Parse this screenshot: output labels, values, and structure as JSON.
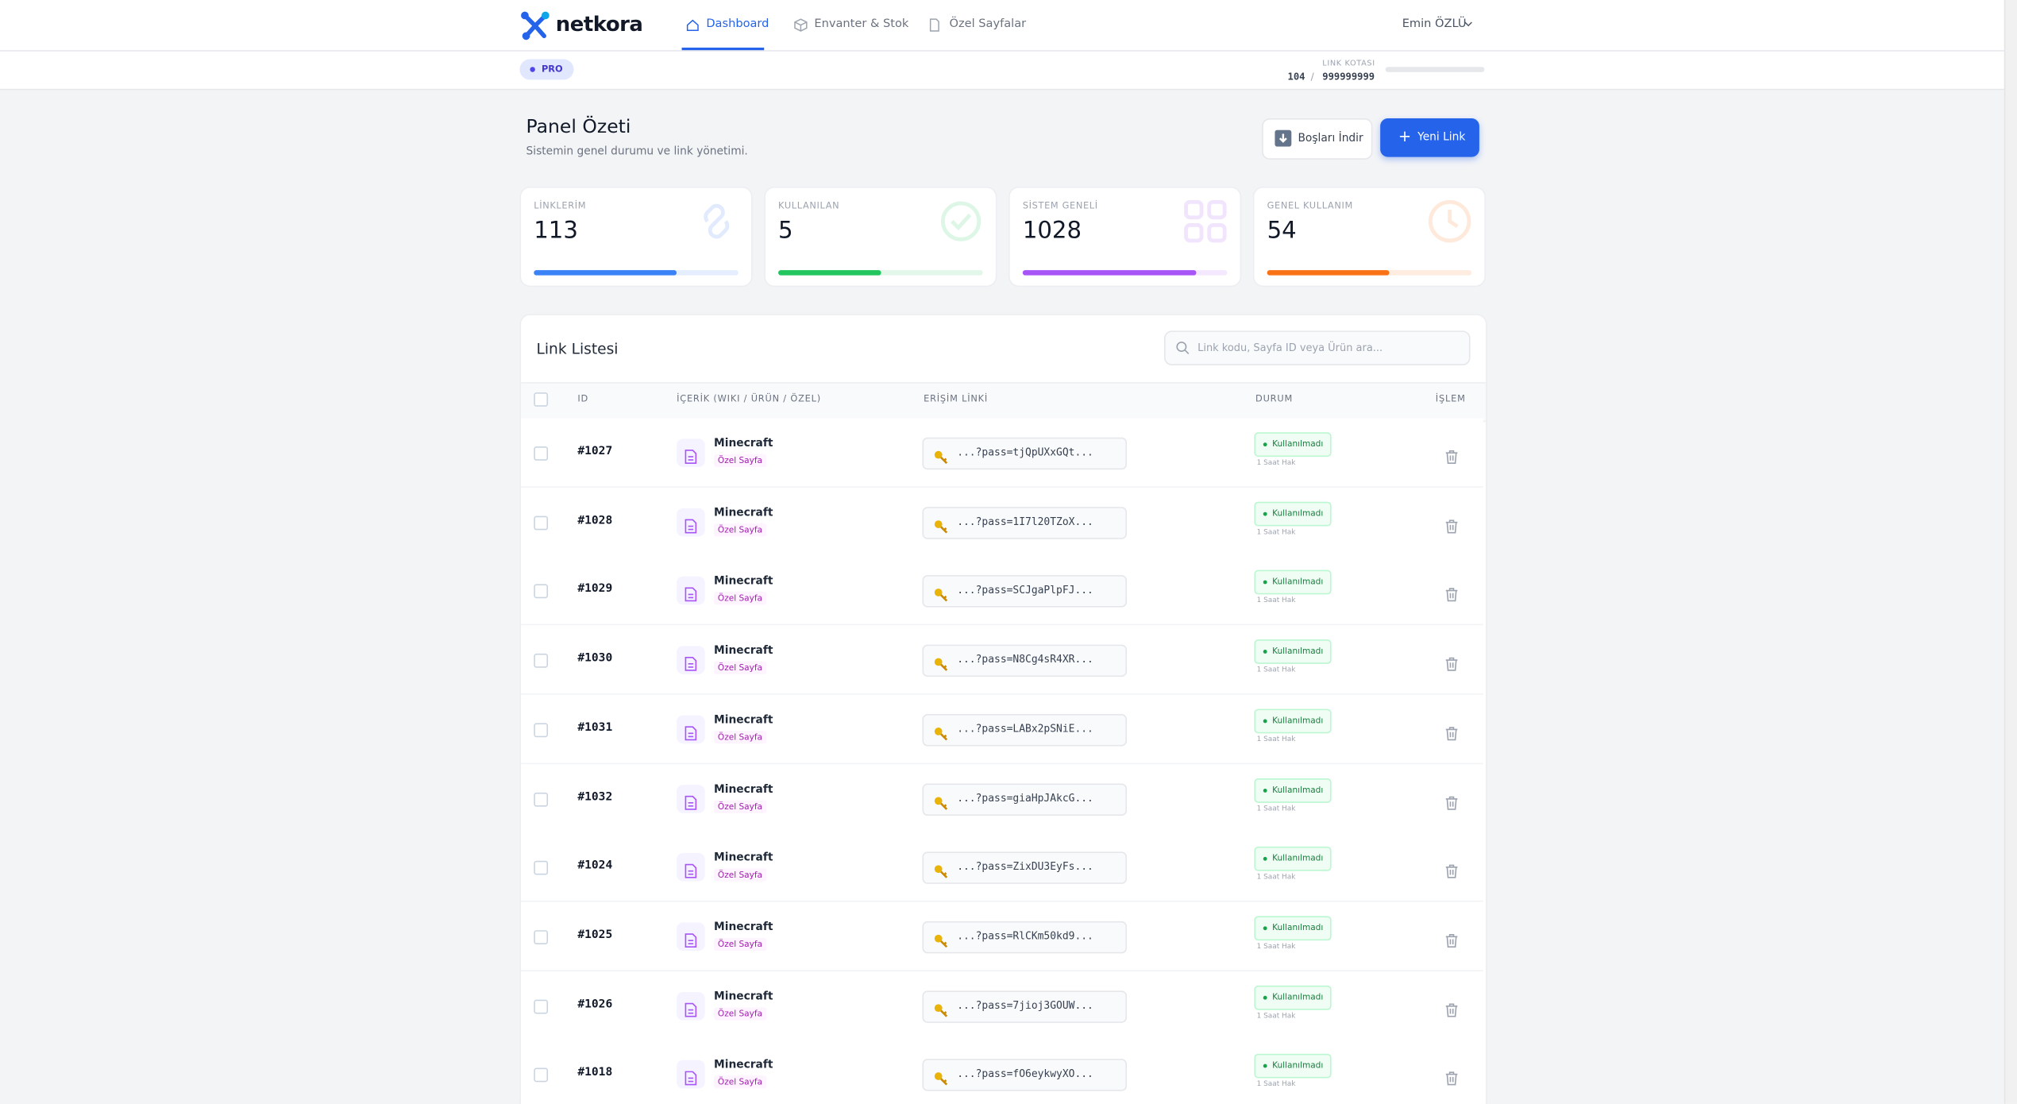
{
  "nav": {
    "logo": "netkora",
    "items": [
      "Dashboard",
      "Envanter & Stok",
      "Özel Sayfalar"
    ],
    "user": "Emin ÖZLÜ"
  },
  "plan": {
    "badge": "PRO",
    "quota_label": "LINK KOTASI",
    "used": "104",
    "separator": "/",
    "limit": "999999999"
  },
  "header": {
    "title": "Panel Özeti",
    "subtitle": "Sistemin genel durumu ve link yönetimi.",
    "download_button": "Boşları İndir",
    "new_button": "Yeni Link"
  },
  "stats": [
    {
      "label": "LİNKLERİM",
      "value": 113,
      "progress": 70,
      "color": "#3b82f6"
    },
    {
      "label": "KULLANILAN",
      "value": 5,
      "progress": 50,
      "color": "#22c55e"
    },
    {
      "label": "SİSTEM GENELİ",
      "value": 1028,
      "progress": 85,
      "color": "#a855f7"
    },
    {
      "label": "GENEL KULLANIM",
      "value": 54,
      "progress": 60,
      "color": "#f97316"
    }
  ],
  "table": {
    "title": "Link Listesi",
    "search_placeholder": "Link kodu, Sayfa ID veya Ürün ara...",
    "columns": [
      "ID",
      "İÇERİK (WIKI / ÜRÜN / ÖZEL)",
      "ERİŞİM LİNKİ",
      "DURUM",
      "İŞLEM"
    ],
    "rows": [
      [
        "#1027",
        "Minecraft",
        "Özel Sayfa",
        "...?pass=tjQpUXxGQt...",
        "Kullanılmadı",
        "1 Saat Hak"
      ],
      [
        "#1028",
        "Minecraft",
        "Özel Sayfa",
        "...?pass=1I7l20TZoX...",
        "Kullanılmadı",
        "1 Saat Hak"
      ],
      [
        "#1029",
        "Minecraft",
        "Özel Sayfa",
        "...?pass=SCJgaPlpFJ...",
        "Kullanılmadı",
        "1 Saat Hak"
      ],
      [
        "#1030",
        "Minecraft",
        "Özel Sayfa",
        "...?pass=N8Cg4sR4XR...",
        "Kullanılmadı",
        "1 Saat Hak"
      ],
      [
        "#1031",
        "Minecraft",
        "Özel Sayfa",
        "...?pass=LABx2pSNiE...",
        "Kullanılmadı",
        "1 Saat Hak"
      ],
      [
        "#1032",
        "Minecraft",
        "Özel Sayfa",
        "...?pass=giaHpJAkcG...",
        "Kullanılmadı",
        "1 Saat Hak"
      ],
      [
        "#1024",
        "Minecraft",
        "Özel Sayfa",
        "...?pass=ZixDU3EyFs...",
        "Kullanılmadı",
        "1 Saat Hak"
      ],
      [
        "#1025",
        "Minecraft",
        "Özel Sayfa",
        "...?pass=RlCKm50kd9...",
        "Kullanılmadı",
        "1 Saat Hak"
      ],
      [
        "#1026",
        "Minecraft",
        "Özel Sayfa",
        "...?pass=7jioj3GOUW...",
        "Kullanılmadı",
        "1 Saat Hak"
      ],
      [
        "#1018",
        "Minecraft",
        "Özel Sayfa",
        "...?pass=fO6eykwyXO...",
        "Kullanılmadı",
        "1 Saat Hak"
      ]
    ]
  }
}
